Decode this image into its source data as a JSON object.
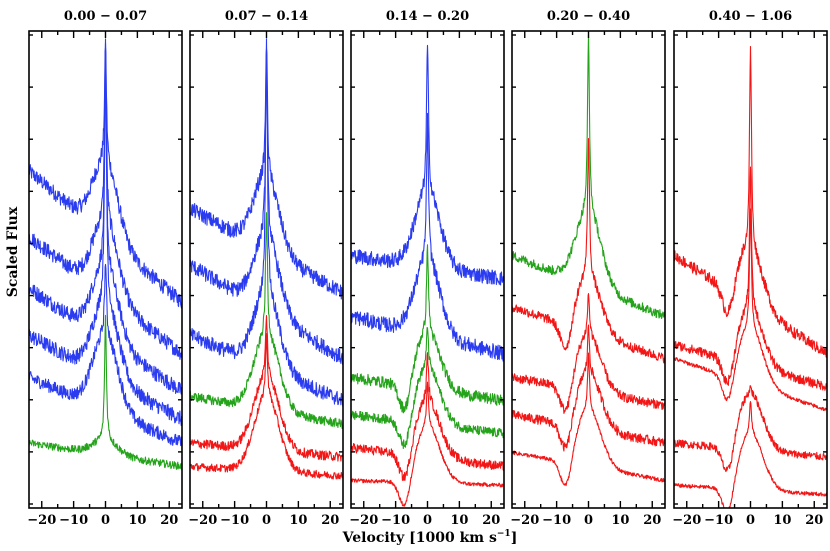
{
  "figure": {
    "ylabel": "Scaled Flux",
    "xlabel_main": "Velocity [1000 km s",
    "xlabel_sup": "−1",
    "xlabel_close": "]"
  },
  "colors": {
    "blue": "#2b3cf0",
    "green": "#24a31b",
    "red": "#f21616"
  },
  "chart_data": [
    {
      "type": "line",
      "title": "0.00 − 0.07",
      "xlim": [
        -24,
        24
      ],
      "xticks": [
        -20,
        -10,
        0,
        10,
        20
      ],
      "xtick_labels": [
        "−20",
        "−10",
        "0",
        "10",
        "20"
      ],
      "ylim": [
        0,
        1
      ],
      "series": [
        {
          "color": "blue",
          "peak": 0.98,
          "left": 0.71,
          "right": 0.43,
          "shape": "broad",
          "noise": 0.016
        },
        {
          "color": "blue",
          "peak": 0.98,
          "left": 0.57,
          "right": 0.32,
          "shape": "broad",
          "noise": 0.016
        },
        {
          "color": "blue",
          "peak": 0.98,
          "left": 0.46,
          "right": 0.24,
          "shape": "broad",
          "noise": 0.016
        },
        {
          "color": "blue",
          "peak": 0.98,
          "left": 0.36,
          "right": 0.18,
          "shape": "broad",
          "noise": 0.016
        },
        {
          "color": "blue",
          "peak": 0.52,
          "left": 0.27,
          "right": 0.13,
          "shape": "broad",
          "noise": 0.014
        },
        {
          "color": "green",
          "peak": 0.37,
          "left": 0.13,
          "right": 0.08,
          "shape": "narrow",
          "noise": 0.008
        }
      ]
    },
    {
      "type": "line",
      "title": "0.07 − 0.14",
      "xlim": [
        -24,
        24
      ],
      "xticks": [
        -20,
        -10,
        0,
        10,
        20
      ],
      "xtick_labels": [
        "−20",
        "−10",
        "0",
        "10",
        "20"
      ],
      "ylim": [
        0,
        1
      ],
      "series": [
        {
          "color": "blue",
          "peak": 0.98,
          "left": 0.63,
          "right": 0.45,
          "shape": "broad",
          "noise": 0.016
        },
        {
          "color": "blue",
          "peak": 0.98,
          "left": 0.51,
          "right": 0.31,
          "shape": "broad",
          "noise": 0.016
        },
        {
          "color": "blue",
          "peak": 0.98,
          "left": 0.36,
          "right": 0.22,
          "shape": "broad",
          "noise": 0.016
        },
        {
          "color": "green",
          "peak": 0.62,
          "left": 0.23,
          "right": 0.17,
          "shape": "broad",
          "noise": 0.01
        },
        {
          "color": "red",
          "peak": 0.4,
          "left": 0.13,
          "right": 0.1,
          "shape": "broad",
          "noise": 0.01
        },
        {
          "color": "red",
          "peak": 0.36,
          "left": 0.08,
          "right": 0.06,
          "shape": "broad",
          "noise": 0.008
        }
      ]
    },
    {
      "type": "line",
      "title": "0.14 − 0.20",
      "xlim": [
        -24,
        24
      ],
      "xticks": [
        -20,
        -10,
        0,
        10,
        20
      ],
      "xtick_labels": [
        "−20",
        "−10",
        "0",
        "10",
        "20"
      ],
      "ylim": [
        0,
        1
      ],
      "series": [
        {
          "color": "blue",
          "peak": 0.98,
          "left": 0.53,
          "right": 0.48,
          "shape": "broad",
          "noise": 0.016
        },
        {
          "color": "blue",
          "peak": 0.82,
          "left": 0.4,
          "right": 0.32,
          "shape": "broad",
          "noise": 0.016
        },
        {
          "color": "green",
          "peak": 0.55,
          "left": 0.27,
          "right": 0.22,
          "shape": "pcygni",
          "noise": 0.012
        },
        {
          "color": "green",
          "peak": 0.38,
          "left": 0.19,
          "right": 0.15,
          "shape": "pcygni",
          "noise": 0.01
        },
        {
          "color": "red",
          "peak": 0.32,
          "left": 0.12,
          "right": 0.08,
          "shape": "pcygni",
          "noise": 0.01
        },
        {
          "color": "red",
          "peak": 0.26,
          "left": 0.05,
          "right": 0.04,
          "shape": "pcygni",
          "noise": 0.004
        }
      ]
    },
    {
      "type": "line",
      "title": "0.20 − 0.40",
      "xlim": [
        -24,
        24
      ],
      "xticks": [
        -20,
        -10,
        0,
        10,
        20
      ],
      "xtick_labels": [
        "−20",
        "−10",
        "0",
        "10",
        "20"
      ],
      "ylim": [
        0,
        1
      ],
      "series": [
        {
          "color": "green",
          "peak": 1.0,
          "left": 0.53,
          "right": 0.4,
          "shape": "broad",
          "noise": 0.01
        },
        {
          "color": "red",
          "peak": 0.78,
          "left": 0.42,
          "right": 0.31,
          "shape": "pcygni",
          "noise": 0.01
        },
        {
          "color": "red",
          "peak": 0.45,
          "left": 0.27,
          "right": 0.21,
          "shape": "pcygni",
          "noise": 0.01
        },
        {
          "color": "red",
          "peak": 0.38,
          "left": 0.19,
          "right": 0.13,
          "shape": "pcygni",
          "noise": 0.01
        },
        {
          "color": "red",
          "peak": 0.32,
          "left": 0.11,
          "right": 0.05,
          "shape": "pcygni",
          "noise": 0.004
        }
      ]
    },
    {
      "type": "line",
      "title": "0.40 − 1.06",
      "xlim": [
        -24,
        24
      ],
      "xticks": [
        -20,
        -10,
        0,
        10,
        20
      ],
      "xtick_labels": [
        "−20",
        "−10",
        "0",
        "10",
        "20"
      ],
      "ylim": [
        0,
        1
      ],
      "series": [
        {
          "color": "red",
          "peak": 0.98,
          "left": 0.53,
          "right": 0.32,
          "shape": "pcygni",
          "noise": 0.012
        },
        {
          "color": "red",
          "peak": 0.72,
          "left": 0.34,
          "right": 0.25,
          "shape": "pcygni",
          "noise": 0.01
        },
        {
          "color": "red",
          "peak": 0.63,
          "left": 0.31,
          "right": 0.2,
          "shape": "pcygni",
          "noise": 0.004
        },
        {
          "color": "red",
          "peak": 0.25,
          "left": 0.13,
          "right": 0.1,
          "shape": "pcygni",
          "noise": 0.008
        },
        {
          "color": "red",
          "peak": 0.22,
          "left": 0.04,
          "right": 0.02,
          "shape": "pcygni",
          "noise": 0.004
        }
      ]
    }
  ]
}
